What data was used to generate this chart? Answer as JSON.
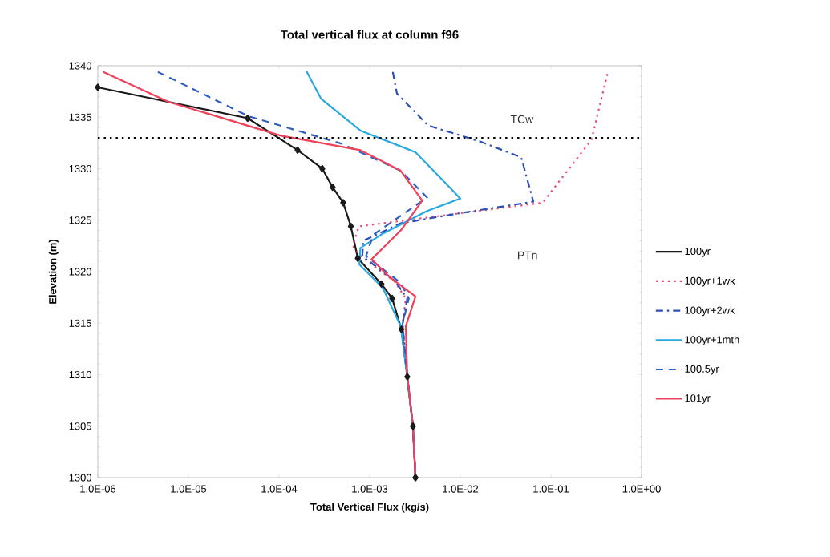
{
  "chart_data": {
    "type": "line",
    "title": "Total vertical flux at column f96",
    "xlabel": "Total Vertical Flux (kg/s)",
    "ylabel": "Elevation (m)",
    "log": "x",
    "xlim": [
      1e-06,
      1
    ],
    "ylim": [
      1300,
      1340
    ],
    "xticks": [
      {
        "value": 1e-06,
        "label": "1.0E-06"
      },
      {
        "value": 1e-05,
        "label": "1.0E-05"
      },
      {
        "value": 0.0001,
        "label": "1.0E-04"
      },
      {
        "value": 0.001,
        "label": "1.0E-03"
      },
      {
        "value": 0.01,
        "label": "1.0E-02"
      },
      {
        "value": 0.1,
        "label": "1.0E-01"
      },
      {
        "value": 1,
        "label": "1.0E+00"
      }
    ],
    "yticks": [
      1300,
      1305,
      1310,
      1315,
      1320,
      1325,
      1330,
      1335,
      1340
    ],
    "grid": false,
    "legend": "right",
    "ref_lines": [
      {
        "axis": "y",
        "value": 1333,
        "color": "#000000",
        "line_style": "dotted"
      }
    ],
    "annotations": [
      "TCw",
      "PTn"
    ],
    "series": [
      {
        "name": "100yr",
        "color": "#1a1a1a",
        "marker": "diamond",
        "line_style": "solid",
        "x": [
          1e-06,
          4.5e-05,
          0.00016,
          0.0003,
          0.00039,
          0.00051,
          0.00062,
          0.00074,
          0.00135,
          0.00177,
          0.00224,
          0.0026,
          0.003,
          0.0032
        ],
        "values": [
          1337.9,
          1334.9,
          1331.8,
          1330,
          1328.2,
          1326.7,
          1324.4,
          1321.3,
          1318.8,
          1317.4,
          1314.4,
          1309.8,
          1305,
          1300
        ]
      },
      {
        "name": "100yr+1wk",
        "color": "#e8507a",
        "line_style": "dotted",
        "x": [
          0.42,
          0.28,
          0.081,
          0.00076,
          0.00065,
          0.0008,
          0.0019,
          0.0025,
          0.0023,
          0.0026,
          0.003,
          0.0032
        ],
        "values": [
          1339.2,
          1332.8,
          1326.7,
          1324.4,
          1322.5,
          1321.5,
          1319,
          1317.4,
          1314.9,
          1309.8,
          1305,
          1300
        ]
      },
      {
        "name": "100yr+2wk",
        "color": "#2e4fb5",
        "line_style": "dashdot",
        "x": [
          0.0018,
          0.002,
          0.0044,
          0.017,
          0.047,
          0.064,
          0.0087,
          0.0022,
          0.00085,
          0.00083,
          0.0019,
          0.0026,
          0.0023,
          0.0026,
          0.003,
          0.0032
        ],
        "values": [
          1339.4,
          1337.3,
          1334.2,
          1332.6,
          1331.1,
          1326.8,
          1325.6,
          1324.7,
          1323,
          1321.5,
          1319.1,
          1317.4,
          1314.9,
          1309.8,
          1305,
          1300
        ]
      },
      {
        "name": "100yr+1mth",
        "color": "#29a8e0",
        "line_style": "solid",
        "x": [
          0.0002,
          0.00029,
          0.00079,
          0.0032,
          0.0062,
          0.01,
          0.0043,
          0.0014,
          0.00079,
          0.00077,
          0.0014,
          0.0022,
          0.0026,
          0.003,
          0.0032
        ],
        "values": [
          1339.5,
          1336.8,
          1333.7,
          1331.6,
          1329,
          1327.1,
          1325.9,
          1323.7,
          1322.3,
          1320.7,
          1318.4,
          1314.7,
          1309.8,
          1305,
          1300
        ]
      },
      {
        "name": "100.5yr",
        "color": "#2f5fbf",
        "line_style": "dashed",
        "x": [
          4.6e-06,
          4.6e-05,
          0.0005,
          0.0022,
          0.0043,
          0.0011,
          0.00091,
          0.0022,
          0.0027,
          0.0023,
          0.0026,
          0.003,
          0.0032
        ],
        "values": [
          1339.4,
          1335.1,
          1332.4,
          1329.8,
          1327.2,
          1323.6,
          1321.5,
          1318.9,
          1317.4,
          1314.9,
          1309.8,
          1305,
          1300
        ]
      },
      {
        "name": "101yr",
        "color": "#f0405a",
        "line_style": "solid",
        "x": [
          1.15e-06,
          6e-06,
          0.000105,
          0.00029,
          0.00079,
          0.0022,
          0.0038,
          0.0022,
          0.00105,
          0.0017,
          0.0032,
          0.0025,
          0.0026,
          0.003,
          0.0032
        ],
        "values": [
          1339.4,
          1336.5,
          1333.2,
          1332.5,
          1331.8,
          1329.8,
          1326.9,
          1324,
          1321.2,
          1319.4,
          1317.6,
          1314.7,
          1309.8,
          1305,
          1300
        ]
      }
    ]
  }
}
